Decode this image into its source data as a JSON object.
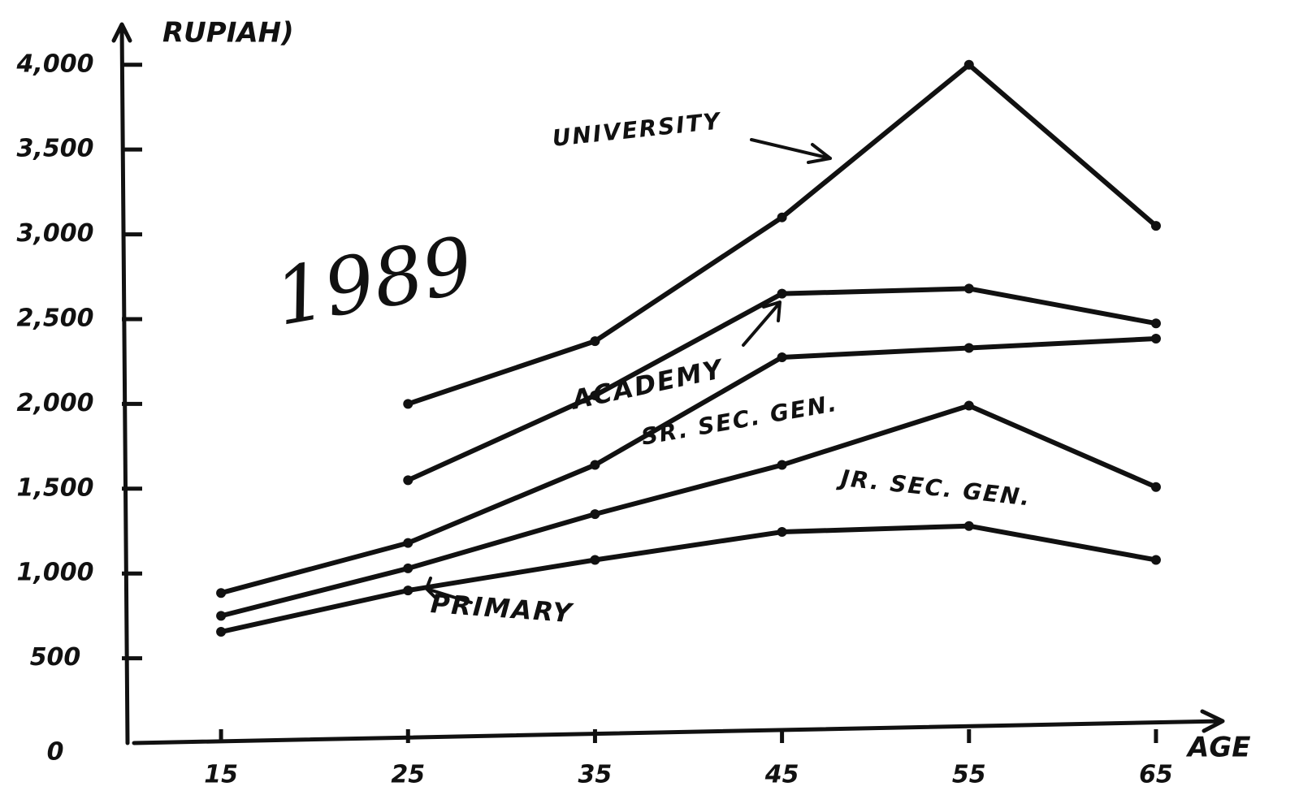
{
  "chart_data": {
    "type": "line",
    "y_label": "RUPIAH)",
    "x_label": "AGE",
    "annotation": "1989",
    "x": [
      15,
      25,
      35,
      45,
      55,
      65
    ],
    "xlim": [
      10,
      68
    ],
    "xticks": [
      15,
      25,
      35,
      45,
      55,
      65
    ],
    "ylim": [
      0,
      4200
    ],
    "yticks": [
      0,
      500,
      {
        "value": 1000,
        "label": "1,000"
      },
      {
        "value": 1500,
        "label": "1,500"
      },
      {
        "value": 2000,
        "label": "2,000"
      },
      {
        "value": 2500,
        "label": "2,500"
      },
      {
        "value": 3000,
        "label": "3,000"
      },
      {
        "value": 3500,
        "label": "3,500"
      },
      {
        "value": 4000,
        "label": "4,000"
      }
    ],
    "grid": false,
    "series": [
      {
        "name": "UNIVERSITY",
        "color": "#111111",
        "values": [
          null,
          2000,
          2370,
          3100,
          4000,
          3050
        ]
      },
      {
        "name": "ACADEMY",
        "color": "#111111",
        "values": [
          null,
          1550,
          2050,
          2650,
          2680,
          2475
        ]
      },
      {
        "name": "SR. SEC. GEN.",
        "color": "#111111",
        "values": [
          885,
          1180,
          1640,
          2275,
          2330,
          2385
        ]
      },
      {
        "name": "JR. SEC. GEN.",
        "color": "#111111",
        "values": [
          750,
          1030,
          1350,
          1640,
          1990,
          1510
        ]
      },
      {
        "name": "PRIMARY",
        "color": "#111111",
        "values": [
          656,
          900,
          1080,
          1245,
          1280,
          1080
        ]
      }
    ]
  }
}
